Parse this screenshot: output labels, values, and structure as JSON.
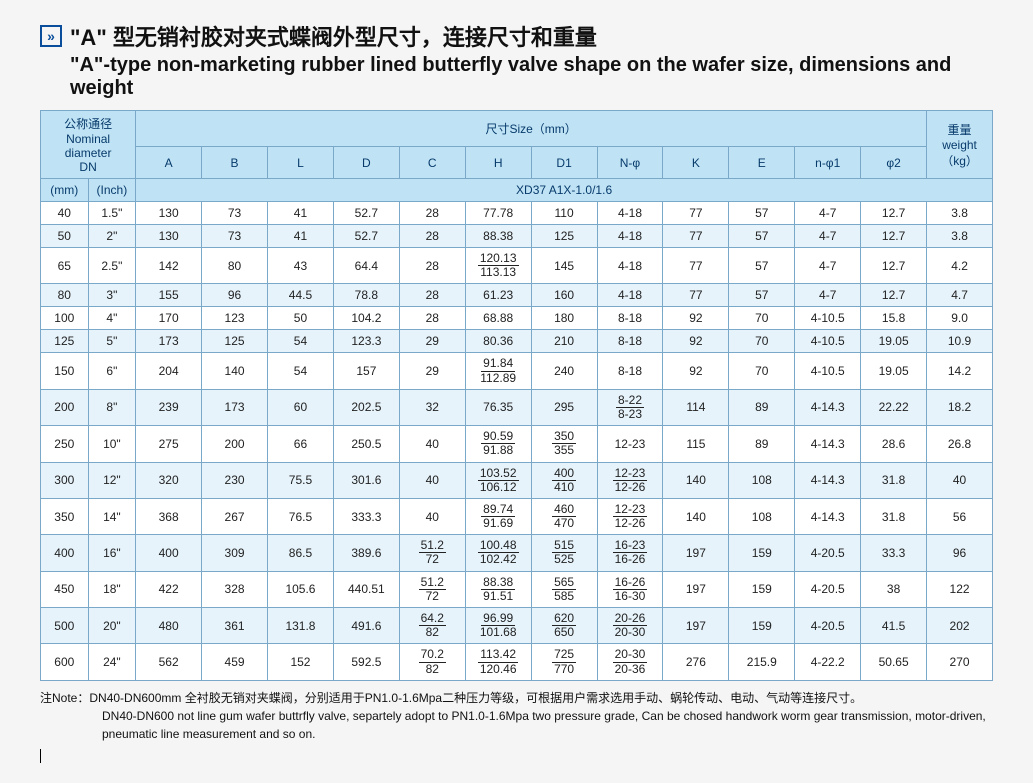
{
  "title_cn": "\"A\" 型无销衬胶对夹式蝶阀外型尺寸，连接尺寸和重量",
  "title_en": "\"A\"-type non-marketing rubber lined butterfly valve shape on the wafer size, dimensions and weight",
  "icon_glyph": "»",
  "headers": {
    "nominal": "公称通径\nNominal\ndiameter\nDN",
    "size": "尺寸Size（mm）",
    "weight": "重量\nweight\n（kg）",
    "mm": "(mm)",
    "inch": "(Inch)",
    "cols": [
      "A",
      "B",
      "L",
      "D",
      "C",
      "H",
      "D1",
      "N-φ",
      "K",
      "E",
      "n-φ1",
      "φ2"
    ],
    "model": "XD37 A1X-1.0/1.6"
  },
  "rows": [
    {
      "mm": "40",
      "in": "1.5\"",
      "A": "130",
      "B": "73",
      "L": "41",
      "D": "52.7",
      "C": "28",
      "H": "77.78",
      "D1": "110",
      "Nphi": "4-18",
      "K": "77",
      "E": "57",
      "nphi1": "4-7",
      "phi2": "12.7",
      "wt": "3.8"
    },
    {
      "mm": "50",
      "in": "2\"",
      "A": "130",
      "B": "73",
      "L": "41",
      "D": "52.7",
      "C": "28",
      "H": "88.38",
      "D1": "125",
      "Nphi": "4-18",
      "K": "77",
      "E": "57",
      "nphi1": "4-7",
      "phi2": "12.7",
      "wt": "3.8"
    },
    {
      "mm": "65",
      "in": "2.5\"",
      "A": "142",
      "B": "80",
      "L": "43",
      "D": "64.4",
      "C": "28",
      "H": [
        "120.13",
        "113.13"
      ],
      "D1": "145",
      "Nphi": "4-18",
      "K": "77",
      "E": "57",
      "nphi1": "4-7",
      "phi2": "12.7",
      "wt": "4.2"
    },
    {
      "mm": "80",
      "in": "3\"",
      "A": "155",
      "B": "96",
      "L": "44.5",
      "D": "78.8",
      "C": "28",
      "H": "61.23",
      "D1": "160",
      "Nphi": "4-18",
      "K": "77",
      "E": "57",
      "nphi1": "4-7",
      "phi2": "12.7",
      "wt": "4.7"
    },
    {
      "mm": "100",
      "in": "4\"",
      "A": "170",
      "B": "123",
      "L": "50",
      "D": "104.2",
      "C": "28",
      "H": "68.88",
      "D1": "180",
      "Nphi": "8-18",
      "K": "92",
      "E": "70",
      "nphi1": "4-10.5",
      "phi2": "15.8",
      "wt": "9.0"
    },
    {
      "mm": "125",
      "in": "5\"",
      "A": "173",
      "B": "125",
      "L": "54",
      "D": "123.3",
      "C": "29",
      "H": "80.36",
      "D1": "210",
      "Nphi": "8-18",
      "K": "92",
      "E": "70",
      "nphi1": "4-10.5",
      "phi2": "19.05",
      "wt": "10.9"
    },
    {
      "mm": "150",
      "in": "6\"",
      "A": "204",
      "B": "140",
      "L": "54",
      "D": "157",
      "C": "29",
      "H": [
        "91.84",
        "112.89"
      ],
      "D1": "240",
      "Nphi": "8-18",
      "K": "92",
      "E": "70",
      "nphi1": "4-10.5",
      "phi2": "19.05",
      "wt": "14.2"
    },
    {
      "mm": "200",
      "in": "8\"",
      "A": "239",
      "B": "173",
      "L": "60",
      "D": "202.5",
      "C": "32",
      "H": "76.35",
      "D1": "295",
      "Nphi": [
        "8-22",
        "8-23"
      ],
      "K": "114",
      "E": "89",
      "nphi1": "4-14.3",
      "phi2": "22.22",
      "wt": "18.2"
    },
    {
      "mm": "250",
      "in": "10\"",
      "A": "275",
      "B": "200",
      "L": "66",
      "D": "250.5",
      "C": "40",
      "H": [
        "90.59",
        "91.88"
      ],
      "D1": [
        "350",
        "355"
      ],
      "Nphi": "12-23",
      "K": "115",
      "E": "89",
      "nphi1": "4-14.3",
      "phi2": "28.6",
      "wt": "26.8"
    },
    {
      "mm": "300",
      "in": "12\"",
      "A": "320",
      "B": "230",
      "L": "75.5",
      "D": "301.6",
      "C": "40",
      "H": [
        "103.52",
        "106.12"
      ],
      "D1": [
        "400",
        "410"
      ],
      "Nphi": [
        "12-23",
        "12-26"
      ],
      "K": "140",
      "E": "108",
      "nphi1": "4-14.3",
      "phi2": "31.8",
      "wt": "40"
    },
    {
      "mm": "350",
      "in": "14\"",
      "A": "368",
      "B": "267",
      "L": "76.5",
      "D": "333.3",
      "C": "40",
      "H": [
        "89.74",
        "91.69"
      ],
      "D1": [
        "460",
        "470"
      ],
      "Nphi": [
        "12-23",
        "12-26"
      ],
      "K": "140",
      "E": "108",
      "nphi1": "4-14.3",
      "phi2": "31.8",
      "wt": "56"
    },
    {
      "mm": "400",
      "in": "16\"",
      "A": "400",
      "B": "309",
      "L": "86.5",
      "D": "389.6",
      "C": [
        "51.2",
        "72"
      ],
      "H": [
        "100.48",
        "102.42"
      ],
      "D1": [
        "515",
        "525"
      ],
      "Nphi": [
        "16-23",
        "16-26"
      ],
      "K": "197",
      "E": "159",
      "nphi1": "4-20.5",
      "phi2": "33.3",
      "wt": "96"
    },
    {
      "mm": "450",
      "in": "18\"",
      "A": "422",
      "B": "328",
      "L": "105.6",
      "D": "440.51",
      "C": [
        "51.2",
        "72"
      ],
      "H": [
        "88.38",
        "91.51"
      ],
      "D1": [
        "565",
        "585"
      ],
      "Nphi": [
        "16-26",
        "16-30"
      ],
      "K": "197",
      "E": "159",
      "nphi1": "4-20.5",
      "phi2": "38",
      "wt": "122"
    },
    {
      "mm": "500",
      "in": "20\"",
      "A": "480",
      "B": "361",
      "L": "131.8",
      "D": "491.6",
      "C": [
        "64.2",
        "82"
      ],
      "H": [
        "96.99",
        "101.68"
      ],
      "D1": [
        "620",
        "650"
      ],
      "Nphi": [
        "20-26",
        "20-30"
      ],
      "K": "197",
      "E": "159",
      "nphi1": "4-20.5",
      "phi2": "41.5",
      "wt": "202"
    },
    {
      "mm": "600",
      "in": "24\"",
      "A": "562",
      "B": "459",
      "L": "152",
      "D": "592.5",
      "C": [
        "70.2",
        "82"
      ],
      "H": [
        "113.42",
        "120.46"
      ],
      "D1": [
        "725",
        "770"
      ],
      "Nphi": [
        "20-30",
        "20-36"
      ],
      "K": "276",
      "E": "215.9",
      "nphi1": "4-22.2",
      "phi2": "50.65",
      "wt": "270"
    }
  ],
  "note_label": "注Note：",
  "note_cn": "DN40-DN600mm 全衬胶无销对夹蝶阀，分别适用于PN1.0-1.6Mpa二种压力等级，可根据用户需求选用手动、蜗轮传动、电动、气动等连接尺寸。",
  "note_en1": "DN40-DN600 not line gum wafer buttrfly valve, separtely adopt to PN1.0-1.6Mpa two pressure grade, Can be chosed handwork worm gear transmission, motor-driven,",
  "note_en2": "pneumatic line measurement and so on.",
  "styling": {
    "header_bg": "#bfe3f5",
    "row_odd_bg": "#ffffff",
    "row_even_bg": "#e6f3fb",
    "border_color": "#7aa8c9",
    "icon_color": "#0a4e9b",
    "title_fontsize_cn": 22,
    "title_fontsize_en": 20,
    "table_fontsize": 12
  }
}
